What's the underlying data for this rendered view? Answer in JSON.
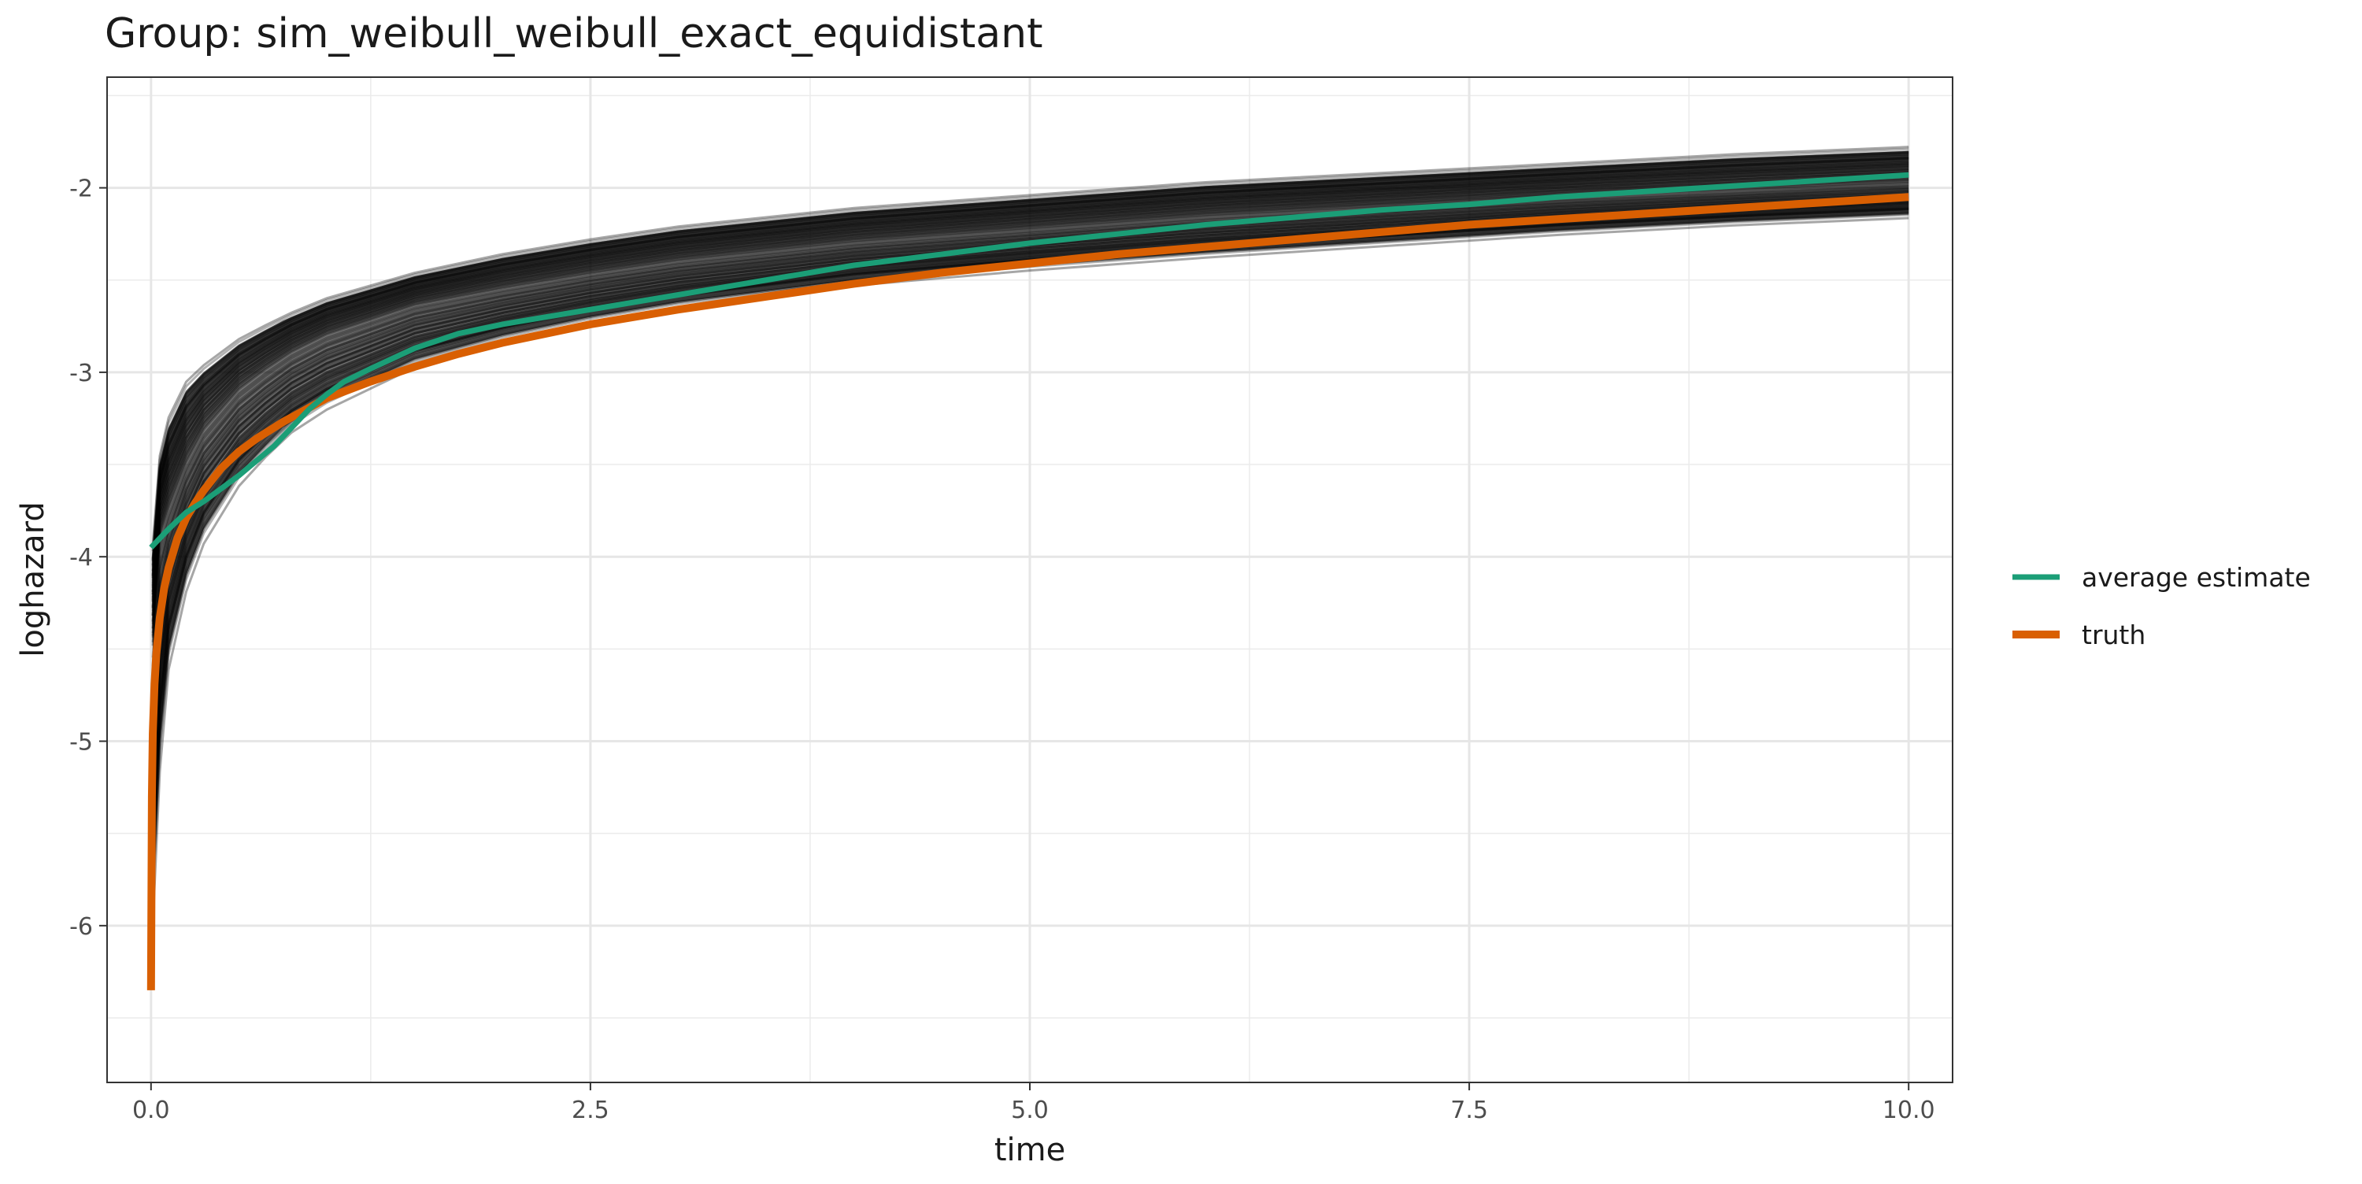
{
  "chart_data": {
    "type": "line",
    "title": "Group: sim_weibull_weibull_exact_equidistant",
    "xlabel": "time",
    "ylabel": "loghazard",
    "xlim": [
      -0.25,
      10.25
    ],
    "ylim": [
      -6.85,
      -1.4
    ],
    "x_ticks": [
      0,
      2.5,
      5,
      7.5,
      10
    ],
    "x_tick_labels": [
      "0.0",
      "2.5",
      "5.0",
      "7.5",
      "10.0"
    ],
    "y_ticks": [
      -6,
      -5,
      -4,
      -3,
      -2
    ],
    "y_tick_labels": [
      "-6",
      "-5",
      "-4",
      "-3",
      "-2"
    ],
    "grid": true,
    "legend_position": "right",
    "simulation_band": {
      "description": "many grey semi-transparent simulated estimate curves forming a dense band",
      "color": "#000000",
      "center": [
        [
          0.01,
          -4.5
        ],
        [
          0.05,
          -3.9
        ],
        [
          0.1,
          -3.75
        ],
        [
          0.2,
          -3.5
        ],
        [
          0.3,
          -3.32
        ],
        [
          0.5,
          -3.1
        ],
        [
          0.75,
          -2.92
        ],
        [
          1.0,
          -2.8
        ],
        [
          1.5,
          -2.64
        ],
        [
          2.0,
          -2.55
        ],
        [
          2.5,
          -2.47
        ],
        [
          3.0,
          -2.4
        ],
        [
          4.0,
          -2.3
        ],
        [
          5.0,
          -2.23
        ],
        [
          6.0,
          -2.16
        ],
        [
          7.0,
          -2.11
        ],
        [
          8.0,
          -2.06
        ],
        [
          9.0,
          -2.02
        ],
        [
          10.0,
          -1.98
        ]
      ],
      "upper": [
        [
          0.01,
          -4.0
        ],
        [
          0.05,
          -3.5
        ],
        [
          0.1,
          -3.3
        ],
        [
          0.2,
          -3.1
        ],
        [
          0.3,
          -3.0
        ],
        [
          0.5,
          -2.85
        ],
        [
          0.75,
          -2.72
        ],
        [
          1.0,
          -2.62
        ],
        [
          1.5,
          -2.48
        ],
        [
          2.0,
          -2.38
        ],
        [
          2.5,
          -2.3
        ],
        [
          3.0,
          -2.23
        ],
        [
          4.0,
          -2.13
        ],
        [
          5.0,
          -2.06
        ],
        [
          6.0,
          -1.99
        ],
        [
          7.0,
          -1.94
        ],
        [
          8.0,
          -1.89
        ],
        [
          9.0,
          -1.84
        ],
        [
          10.0,
          -1.8
        ]
      ],
      "lower": [
        [
          0.01,
          -5.8
        ],
        [
          0.05,
          -5.0
        ],
        [
          0.1,
          -4.5
        ],
        [
          0.2,
          -4.1
        ],
        [
          0.3,
          -3.85
        ],
        [
          0.5,
          -3.55
        ],
        [
          0.75,
          -3.3
        ],
        [
          1.0,
          -3.15
        ],
        [
          1.5,
          -2.93
        ],
        [
          2.0,
          -2.8
        ],
        [
          2.5,
          -2.7
        ],
        [
          3.0,
          -2.62
        ],
        [
          4.0,
          -2.5
        ],
        [
          5.0,
          -2.42
        ],
        [
          6.0,
          -2.35
        ],
        [
          7.0,
          -2.29
        ],
        [
          8.0,
          -2.23
        ],
        [
          9.0,
          -2.18
        ],
        [
          10.0,
          -2.14
        ]
      ]
    },
    "series": [
      {
        "name": "average estimate",
        "color": "#1b9e77",
        "points": [
          [
            0.0,
            -3.95
          ],
          [
            0.1,
            -3.85
          ],
          [
            0.2,
            -3.76
          ],
          [
            0.3,
            -3.7
          ],
          [
            0.4,
            -3.63
          ],
          [
            0.5,
            -3.56
          ],
          [
            0.6,
            -3.48
          ],
          [
            0.7,
            -3.4
          ],
          [
            0.8,
            -3.3
          ],
          [
            0.9,
            -3.2
          ],
          [
            1.0,
            -3.12
          ],
          [
            1.1,
            -3.05
          ],
          [
            1.25,
            -2.98
          ],
          [
            1.5,
            -2.87
          ],
          [
            1.75,
            -2.79
          ],
          [
            2.0,
            -2.74
          ],
          [
            2.25,
            -2.7
          ],
          [
            2.5,
            -2.66
          ],
          [
            3.0,
            -2.58
          ],
          [
            3.5,
            -2.5
          ],
          [
            4.0,
            -2.42
          ],
          [
            4.5,
            -2.36
          ],
          [
            5.0,
            -2.3
          ],
          [
            5.5,
            -2.25
          ],
          [
            6.0,
            -2.2
          ],
          [
            6.5,
            -2.16
          ],
          [
            7.0,
            -2.12
          ],
          [
            7.5,
            -2.09
          ],
          [
            8.0,
            -2.05
          ],
          [
            8.5,
            -2.02
          ],
          [
            9.0,
            -1.99
          ],
          [
            9.5,
            -1.96
          ],
          [
            10.0,
            -1.93
          ]
        ]
      },
      {
        "name": "truth",
        "color": "#d95f02",
        "points": [
          [
            0.0,
            -6.35
          ],
          [
            0.005,
            -5.3
          ],
          [
            0.01,
            -4.96
          ],
          [
            0.02,
            -4.69
          ],
          [
            0.03,
            -4.53
          ],
          [
            0.05,
            -4.33
          ],
          [
            0.075,
            -4.17
          ],
          [
            0.1,
            -4.06
          ],
          [
            0.15,
            -3.9
          ],
          [
            0.2,
            -3.79
          ],
          [
            0.25,
            -3.71
          ],
          [
            0.3,
            -3.64
          ],
          [
            0.4,
            -3.52
          ],
          [
            0.5,
            -3.43
          ],
          [
            0.6,
            -3.36
          ],
          [
            0.75,
            -3.27
          ],
          [
            1.0,
            -3.14
          ],
          [
            1.25,
            -3.05
          ],
          [
            1.5,
            -2.97
          ],
          [
            1.75,
            -2.9
          ],
          [
            2.0,
            -2.84
          ],
          [
            2.5,
            -2.74
          ],
          [
            3.0,
            -2.66
          ],
          [
            3.5,
            -2.59
          ],
          [
            4.0,
            -2.52
          ],
          [
            4.5,
            -2.46
          ],
          [
            5.0,
            -2.41
          ],
          [
            5.5,
            -2.36
          ],
          [
            6.0,
            -2.32
          ],
          [
            6.5,
            -2.28
          ],
          [
            7.0,
            -2.24
          ],
          [
            7.5,
            -2.2
          ],
          [
            8.0,
            -2.17
          ],
          [
            8.5,
            -2.14
          ],
          [
            9.0,
            -2.11
          ],
          [
            9.5,
            -2.08
          ],
          [
            10.0,
            -2.05
          ]
        ]
      }
    ]
  }
}
